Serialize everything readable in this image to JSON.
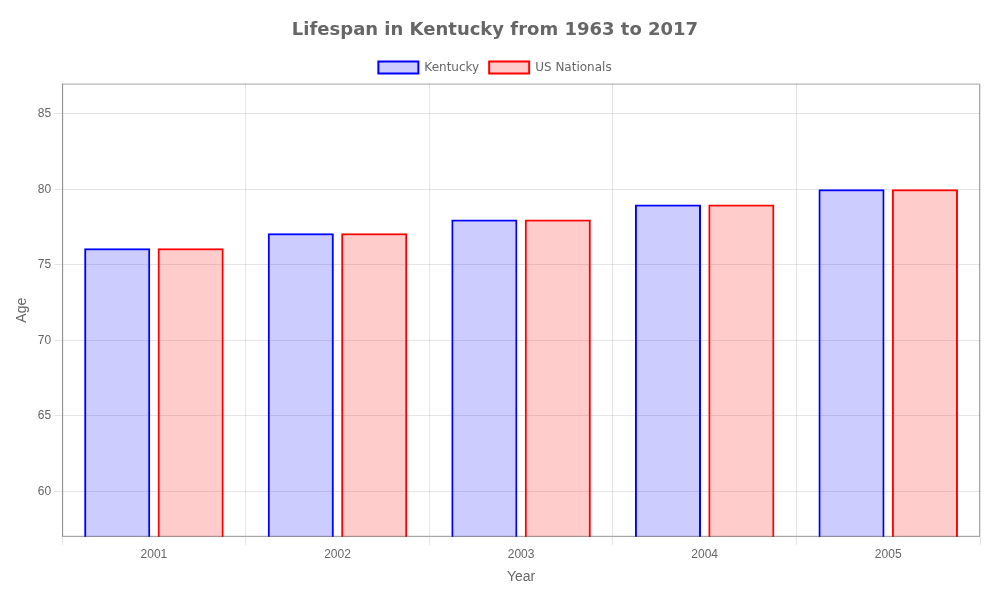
{
  "chart_data": {
    "type": "bar",
    "title": "Lifespan in Kentucky from 1963 to 2017",
    "xlabel": "Year",
    "ylabel": "Age",
    "categories": [
      2001,
      2002,
      2003,
      2004,
      2005
    ],
    "series": [
      {
        "name": "Kentucky",
        "color": "#0000ff",
        "values": [
          76.1,
          77.1,
          78.0,
          79.0,
          80.0
        ]
      },
      {
        "name": "US Nationals",
        "color": "#ff0000",
        "values": [
          76.1,
          77.1,
          78.0,
          79.0,
          80.0
        ]
      }
    ],
    "ylim": [
      57,
      87
    ],
    "yticks": [
      60,
      65,
      70,
      75,
      80,
      85
    ],
    "grid": true,
    "legend": "top"
  }
}
